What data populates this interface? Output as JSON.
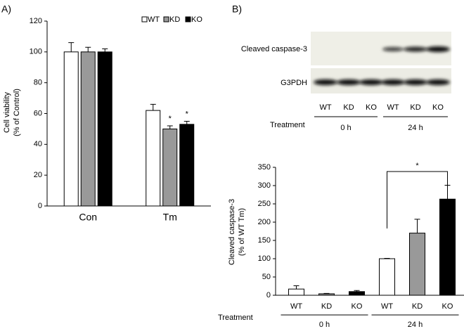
{
  "panel_labels": [
    "A)",
    "B)"
  ],
  "blot": {
    "bands": [
      "Cleaved caspase-3",
      "G3PDH"
    ],
    "lanes": [
      "WT",
      "KD",
      "KO",
      "WT",
      "KD",
      "KO"
    ],
    "group_labels": [
      "0 h",
      "24 h"
    ],
    "group_title": "Treatment"
  },
  "chart_data": [
    {
      "type": "bar",
      "categories": [
        "Con",
        "Tm"
      ],
      "ylabel": [
        "Cell viability",
        "(% of Control)"
      ],
      "series": [
        {
          "name": "WT",
          "color": "#ffffff",
          "values": [
            100,
            62
          ],
          "errors": [
            6,
            4
          ]
        },
        {
          "name": "KD",
          "color": "#999999",
          "values": [
            100,
            50
          ],
          "errors": [
            3,
            2
          ]
        },
        {
          "name": "KO",
          "color": "#000000",
          "values": [
            100,
            53
          ],
          "errors": [
            2,
            2
          ]
        }
      ],
      "ylim": [
        0,
        120
      ],
      "yticks": [
        0,
        20,
        40,
        60,
        80,
        100,
        120
      ],
      "annotations": [
        "*",
        "*"
      ],
      "legend": "top-right"
    },
    {
      "type": "bar",
      "categories": [
        "WT",
        "KD",
        "KO",
        "WT",
        "KD",
        "KO"
      ],
      "ylabel": [
        "Cleaved caspase-3",
        "(% of  WT Tm)"
      ],
      "values": [
        17,
        4,
        10,
        100,
        170,
        263
      ],
      "errors": [
        9,
        1,
        3,
        1,
        38,
        38
      ],
      "colors": [
        "#ffffff",
        "#999999",
        "#000000",
        "#ffffff",
        "#999999",
        "#000000"
      ],
      "group_labels": [
        "0 h",
        "24 h"
      ],
      "group_title": "Treatment",
      "ylim": [
        0,
        350
      ],
      "yticks": [
        0,
        50,
        100,
        150,
        200,
        250,
        300,
        350
      ],
      "significance": "*"
    }
  ]
}
